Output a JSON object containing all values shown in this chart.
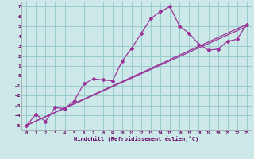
{
  "xlabel": "Windchill (Refroidissement éolien,°C)",
  "ylabel": "",
  "xlim": [
    -0.5,
    23.5
  ],
  "ylim": [
    -5.5,
    7.5
  ],
  "xticks": [
    0,
    1,
    2,
    3,
    4,
    5,
    6,
    7,
    8,
    9,
    10,
    11,
    12,
    13,
    14,
    15,
    16,
    17,
    18,
    19,
    20,
    21,
    22,
    23
  ],
  "yticks": [
    -5,
    -4,
    -3,
    -2,
    -1,
    0,
    1,
    2,
    3,
    4,
    5,
    6,
    7
  ],
  "bg_color": "#cce8e8",
  "line_color": "#993399",
  "grid_color": "#99cccc",
  "data_line": {
    "x": [
      0,
      1,
      2,
      3,
      4,
      5,
      6,
      7,
      8,
      9,
      10,
      11,
      12,
      13,
      14,
      15,
      16,
      17,
      18,
      19,
      20,
      21,
      22,
      23
    ],
    "y": [
      -5.0,
      -3.9,
      -4.6,
      -3.2,
      -3.3,
      -2.5,
      -0.8,
      -0.3,
      -0.4,
      -0.5,
      1.5,
      2.8,
      4.3,
      5.8,
      6.5,
      7.0,
      5.0,
      4.3,
      3.2,
      2.6,
      2.7,
      3.5,
      3.7,
      5.2
    ]
  },
  "ref_line1": {
    "x": [
      0,
      23
    ],
    "y": [
      -5.0,
      5.2
    ]
  },
  "ref_line2": {
    "x": [
      0,
      23
    ],
    "y": [
      -5.0,
      5.0
    ]
  }
}
